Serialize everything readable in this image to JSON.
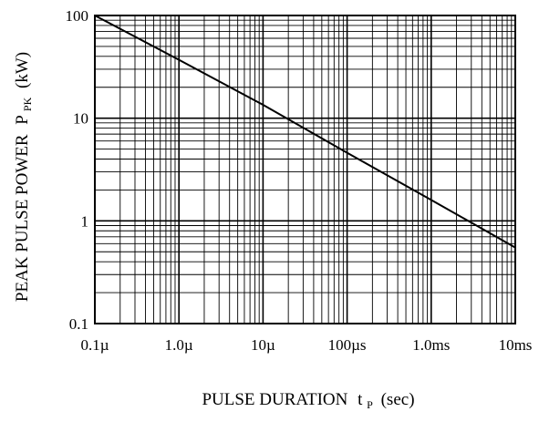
{
  "chart_data": {
    "type": "line",
    "title": "",
    "xlabel": "PULSE DURATION",
    "xlabel_symbol": "t",
    "xlabel_subscript": "P",
    "xlabel_unit": "(sec)",
    "ylabel": "PEAK PULSE POWER",
    "ylabel_symbol": "P",
    "ylabel_subscript": "PK",
    "ylabel_unit": "(kW)",
    "x_scale": "log",
    "y_scale": "log",
    "xlim": [
      1e-07,
      0.01
    ],
    "ylim": [
      0.1,
      100
    ],
    "grid": true,
    "x_ticks": [
      {
        "value": 1e-07,
        "label": "0.1µ"
      },
      {
        "value": 1e-06,
        "label": "1.0µ"
      },
      {
        "value": 1e-05,
        "label": "10µ"
      },
      {
        "value": 0.0001,
        "label": "100µs"
      },
      {
        "value": 0.001,
        "label": "1.0ms"
      },
      {
        "value": 0.01,
        "label": "10ms"
      }
    ],
    "y_ticks": [
      {
        "value": 0.1,
        "label": "0.1"
      },
      {
        "value": 1,
        "label": "1"
      },
      {
        "value": 10,
        "label": "10"
      },
      {
        "value": 100,
        "label": "100"
      }
    ],
    "series": [
      {
        "x": [
          1e-07,
          1e-06,
          1e-05,
          0.0001,
          0.001,
          0.01
        ],
        "y": [
          100,
          37,
          13.5,
          4.6,
          1.6,
          0.55
        ],
        "color": "#000000"
      }
    ]
  }
}
